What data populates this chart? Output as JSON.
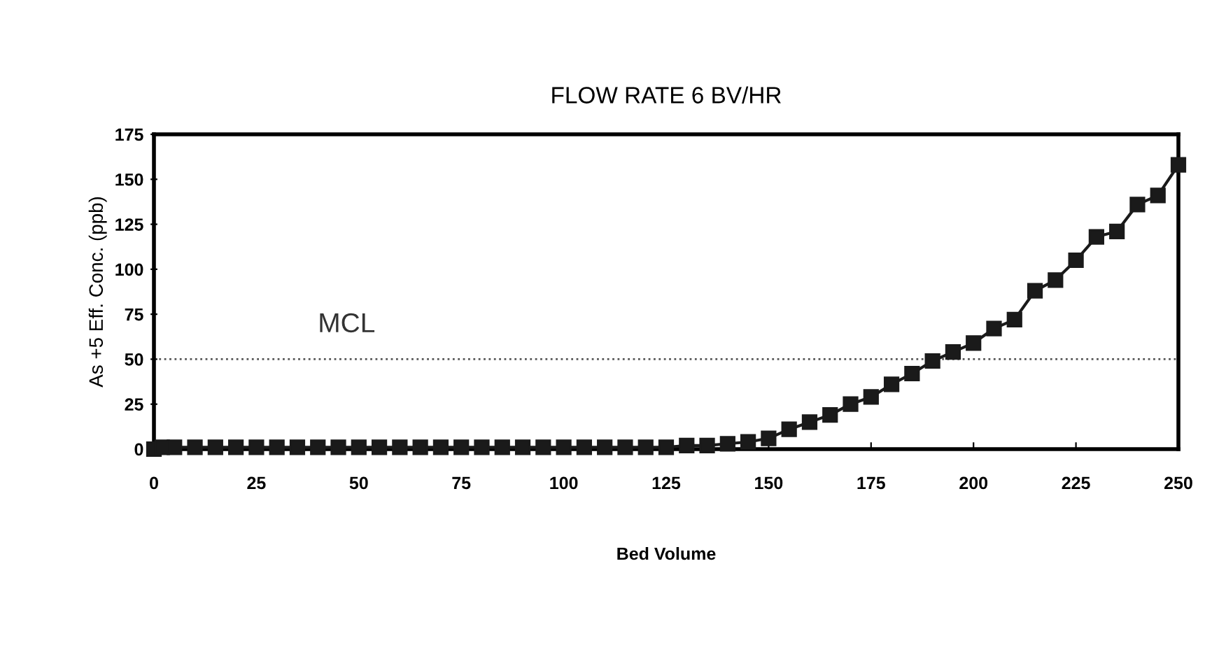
{
  "chart_data": {
    "type": "line",
    "title": "FLOW RATE 6 BV/HR",
    "xlabel": "Bed Volume",
    "ylabel": "As +5 Eff. Conc. (ppb)",
    "x": [
      0,
      2,
      5,
      10,
      15,
      20,
      25,
      30,
      35,
      40,
      45,
      50,
      55,
      60,
      65,
      70,
      75,
      80,
      85,
      90,
      95,
      100,
      105,
      110,
      115,
      120,
      125,
      130,
      135,
      140,
      145,
      150,
      155,
      160,
      165,
      170,
      175,
      180,
      185,
      190,
      195,
      200,
      205,
      210,
      215,
      220,
      225,
      230,
      235,
      240,
      245,
      250
    ],
    "series": [
      {
        "color": "#1a1a1a",
        "values": [
          0,
          1,
          1,
          1,
          1,
          1,
          1,
          1,
          1,
          1,
          1,
          1,
          1,
          1,
          1,
          1,
          1,
          1,
          1,
          1,
          1,
          1,
          1,
          1,
          1,
          1,
          1,
          2,
          2,
          3,
          4,
          6,
          11,
          15,
          19,
          25,
          29,
          36,
          42,
          49,
          54,
          59,
          67,
          72,
          88,
          94,
          105,
          118,
          121,
          136,
          141,
          158
        ]
      }
    ],
    "marker": "square",
    "line_style": "solid",
    "xlim": [
      0,
      250
    ],
    "xticks": [
      0,
      25,
      50,
      75,
      100,
      125,
      150,
      175,
      200,
      225,
      250
    ],
    "ylim": [
      0,
      175
    ],
    "yticks": [
      0,
      25,
      50,
      75,
      100,
      125,
      150,
      175
    ],
    "ref_lines": [
      {
        "axis": "y",
        "value": 50,
        "label": "MCL",
        "color": "#555555",
        "line_style": "dotted"
      }
    ],
    "grid": false,
    "legend": false
  }
}
